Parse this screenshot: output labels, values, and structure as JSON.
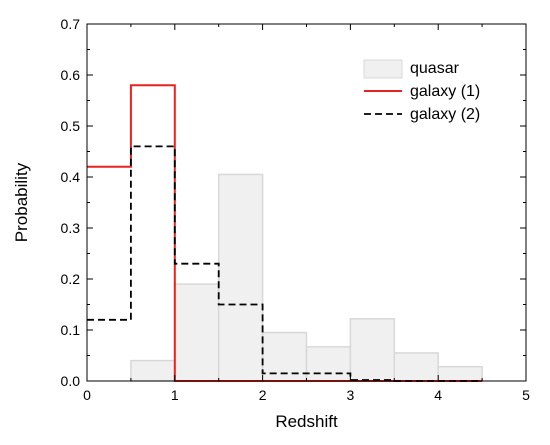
{
  "chart_data": {
    "type": "histogram",
    "title": "",
    "xlabel": "Redshift",
    "ylabel": "Probability",
    "xlim": [
      0,
      5
    ],
    "ylim": [
      0,
      0.7
    ],
    "xticks": [
      "0",
      "1",
      "2",
      "3",
      "4",
      "5"
    ],
    "yticks": [
      "0.0",
      "0.1",
      "0.2",
      "0.3",
      "0.4",
      "0.5",
      "0.6",
      "0.7"
    ],
    "bin_edges": [
      0,
      0.5,
      1.0,
      1.5,
      2.0,
      2.5,
      3.0,
      3.5,
      4.0,
      4.5
    ],
    "grid": false,
    "legend_position": "top-right",
    "series": [
      {
        "name": "quasar",
        "style": "filled",
        "color": "#f0f0f0",
        "edge_color": "#d8d8d8",
        "values": [
          0.0,
          0.04,
          0.19,
          0.405,
          0.095,
          0.067,
          0.122,
          0.055,
          0.028
        ]
      },
      {
        "name": "galaxy (1)",
        "style": "solid",
        "color": "#e8231f",
        "values": [
          0.42,
          0.58,
          0.0,
          0.0,
          0.0,
          0.0,
          0.0,
          0.0,
          0.0
        ]
      },
      {
        "name": "galaxy (2)",
        "style": "dashed",
        "color": "#000000",
        "values": [
          0.12,
          0.46,
          0.23,
          0.15,
          0.015,
          0.015,
          0.002,
          0.0,
          0.0
        ]
      }
    ]
  }
}
